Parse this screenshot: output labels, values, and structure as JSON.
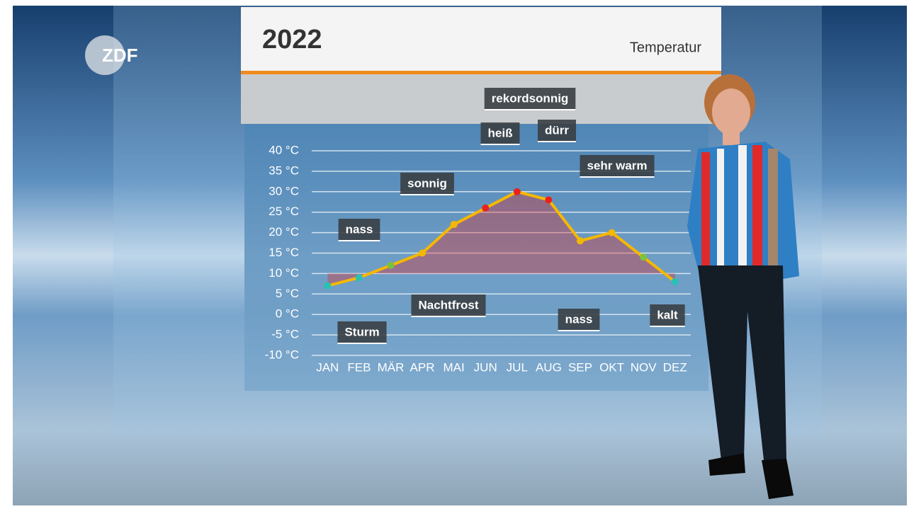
{
  "logo": "ZDF",
  "chart_data": {
    "type": "line",
    "title": "2022",
    "subtitle": "Temperatur",
    "categories": [
      "JAN",
      "FEB",
      "MÄR",
      "APR",
      "MAI",
      "JUN",
      "JUL",
      "AUG",
      "SEP",
      "OKT",
      "NOV",
      "DEZ"
    ],
    "values": [
      7,
      9,
      12,
      15,
      22,
      26,
      30,
      28,
      18,
      20,
      14,
      8
    ],
    "color": "#f5b800",
    "ylim": [
      -10,
      40
    ],
    "yticks": [
      {
        "value": -10,
        "label": "-10 °C"
      },
      {
        "value": -5,
        "label": "-5 °C"
      },
      {
        "value": 0,
        "label": "0 °C"
      },
      {
        "value": 5,
        "label": "5 °C"
      },
      {
        "value": 10,
        "label": "10 °C"
      },
      {
        "value": 15,
        "label": "15 °C"
      },
      {
        "value": 20,
        "label": "20 °C"
      },
      {
        "value": 25,
        "label": "25 °C"
      },
      {
        "value": 30,
        "label": "30 °C"
      },
      {
        "value": 35,
        "label": "35 °C"
      },
      {
        "value": 40,
        "label": "40 °C"
      }
    ],
    "grid": true,
    "annotations": [
      "nass",
      "sonnig",
      "rekordsonnig",
      "heiß",
      "dürr",
      "sehr warm",
      "Nachtfrost",
      "Sturm",
      "nass",
      "kalt"
    ]
  }
}
